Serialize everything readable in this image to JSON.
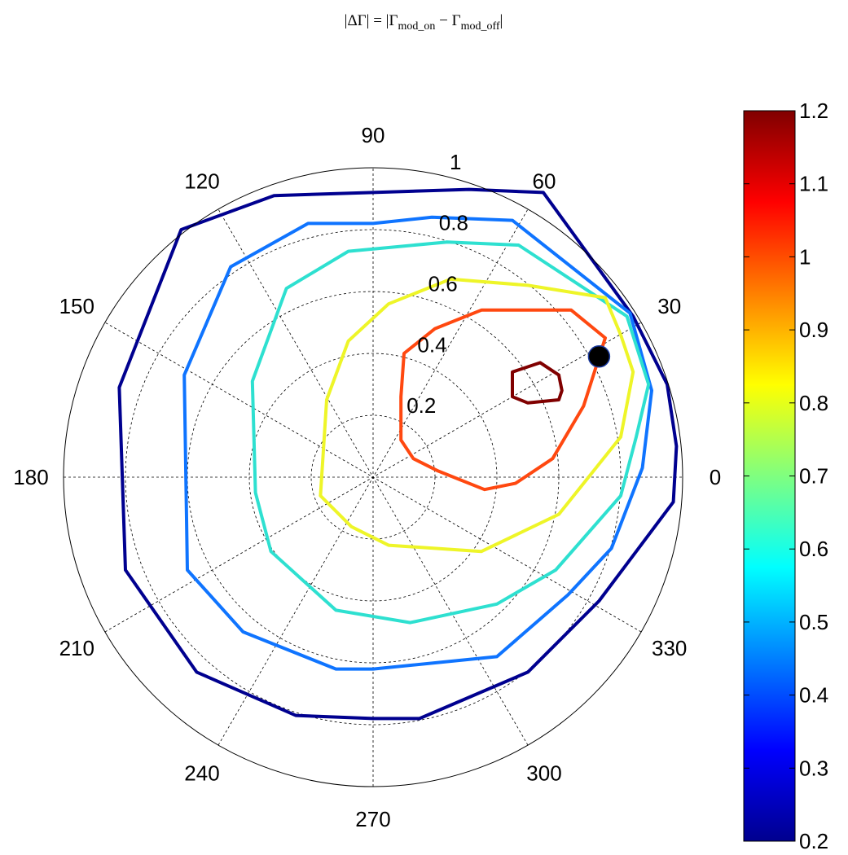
{
  "title": {
    "prefix": "|ΔΓ| = |Γ",
    "sub1": "mod_on",
    "middle": " − Γ",
    "sub2": "mod_off",
    "suffix": "|"
  },
  "chart_data": {
    "type": "polar-contour",
    "theta_unit": "degrees",
    "theta_ticks": [
      0,
      30,
      60,
      90,
      120,
      150,
      180,
      210,
      240,
      300,
      270,
      330
    ],
    "theta_tick_labels": [
      "0",
      "30",
      "60",
      "90",
      "120",
      "150",
      "180",
      "210",
      "240",
      "300",
      "270",
      "330"
    ],
    "r_ticks": [
      0.2,
      0.4,
      0.6,
      0.8,
      1
    ],
    "r_tick_labels": [
      "0.2",
      "0.4",
      "0.6",
      "0.8",
      "1"
    ],
    "rlim": [
      0,
      1
    ],
    "grid": true,
    "colorbar": {
      "colormap": "jet",
      "range": [
        0.2,
        1.2
      ],
      "ticks": [
        0.2,
        0.3,
        0.4,
        0.5,
        0.6,
        0.7,
        0.8,
        0.9,
        1,
        1.1,
        1.2
      ],
      "tick_labels": [
        "0.2",
        "0.3",
        "0.4",
        "0.5",
        "0.6",
        "0.7",
        "0.8",
        "0.9",
        "1",
        "1.1",
        "1.2"
      ]
    },
    "contours": [
      {
        "level": 0.25,
        "color": "#00008F",
        "points": [
          [
            0.98,
            0.1
          ],
          [
            0.95,
            0.3
          ],
          [
            0.84,
            0.52
          ],
          [
            0.55,
            0.92
          ],
          [
            0.31,
            0.93
          ],
          [
            0.0,
            0.92
          ],
          [
            -0.32,
            0.91
          ],
          [
            -0.62,
            0.8
          ],
          [
            -0.82,
            0.29
          ],
          [
            -0.8,
            -0.3
          ],
          [
            -0.57,
            -0.63
          ],
          [
            -0.25,
            -0.77
          ],
          [
            0.0,
            -0.78
          ],
          [
            0.15,
            -0.78
          ],
          [
            0.5,
            -0.63
          ],
          [
            0.73,
            -0.4
          ],
          [
            0.97,
            -0.08
          ],
          [
            0.98,
            0.1
          ]
        ]
      },
      {
        "level": 0.45,
        "color": "#0F74FF",
        "points": [
          [
            0.9,
            0.28
          ],
          [
            0.83,
            0.53
          ],
          [
            0.45,
            0.83
          ],
          [
            0.19,
            0.84
          ],
          [
            0.0,
            0.82
          ],
          [
            -0.21,
            0.82
          ],
          [
            -0.46,
            0.68
          ],
          [
            -0.61,
            0.33
          ],
          [
            -0.6,
            -0.3
          ],
          [
            -0.42,
            -0.5
          ],
          [
            -0.12,
            -0.62
          ],
          [
            0.0,
            -0.62
          ],
          [
            0.4,
            -0.58
          ],
          [
            0.63,
            -0.38
          ],
          [
            0.77,
            -0.23
          ],
          [
            0.87,
            0.03
          ],
          [
            0.9,
            0.28
          ]
        ]
      },
      {
        "level": 0.6,
        "color": "#2EE0D0",
        "points": [
          [
            0.89,
            0.3
          ],
          [
            0.82,
            0.52
          ],
          [
            0.47,
            0.75
          ],
          [
            0.24,
            0.76
          ],
          [
            -0.08,
            0.73
          ],
          [
            -0.28,
            0.61
          ],
          [
            -0.39,
            0.31
          ],
          [
            -0.38,
            -0.05
          ],
          [
            -0.33,
            -0.24
          ],
          [
            -0.12,
            -0.43
          ],
          [
            0.12,
            -0.47
          ],
          [
            0.4,
            -0.41
          ],
          [
            0.59,
            -0.3
          ],
          [
            0.8,
            -0.06
          ],
          [
            0.85,
            0.13
          ],
          [
            0.89,
            0.3
          ]
        ]
      },
      {
        "level": 0.8,
        "color": "#EEF528",
        "points": [
          [
            0.8,
            0.46
          ],
          [
            0.75,
            0.58
          ],
          [
            0.5,
            0.62
          ],
          [
            0.25,
            0.64
          ],
          [
            0.05,
            0.56
          ],
          [
            -0.08,
            0.44
          ],
          [
            -0.15,
            0.25
          ],
          [
            -0.17,
            -0.06
          ],
          [
            -0.07,
            -0.16
          ],
          [
            0.05,
            -0.22
          ],
          [
            0.35,
            -0.24
          ],
          [
            0.6,
            -0.12
          ],
          [
            0.8,
            0.13
          ],
          [
            0.84,
            0.34
          ],
          [
            0.8,
            0.46
          ]
        ]
      },
      {
        "level": 1,
        "color": "#FF4810",
        "points": [
          [
            0.75,
            0.45
          ],
          [
            0.64,
            0.54
          ],
          [
            0.35,
            0.54
          ],
          [
            0.2,
            0.48
          ],
          [
            0.1,
            0.4
          ],
          [
            0.09,
            0.26
          ],
          [
            0.09,
            0.12
          ],
          [
            0.13,
            0.06
          ],
          [
            0.21,
            0.02
          ],
          [
            0.36,
            -0.04
          ],
          [
            0.46,
            -0.02
          ],
          [
            0.58,
            0.06
          ],
          [
            0.68,
            0.23
          ],
          [
            0.75,
            0.45
          ]
        ]
      },
      {
        "level": 1.2,
        "color": "#800000",
        "points": [
          [
            0.6,
            0.33
          ],
          [
            0.54,
            0.37
          ],
          [
            0.45,
            0.34
          ],
          [
            0.45,
            0.26
          ],
          [
            0.5,
            0.24
          ],
          [
            0.6,
            0.25
          ],
          [
            0.61,
            0.28
          ],
          [
            0.6,
            0.33
          ]
        ]
      }
    ],
    "marker": {
      "x": 0.73,
      "y": 0.39,
      "color": "#000000"
    }
  }
}
